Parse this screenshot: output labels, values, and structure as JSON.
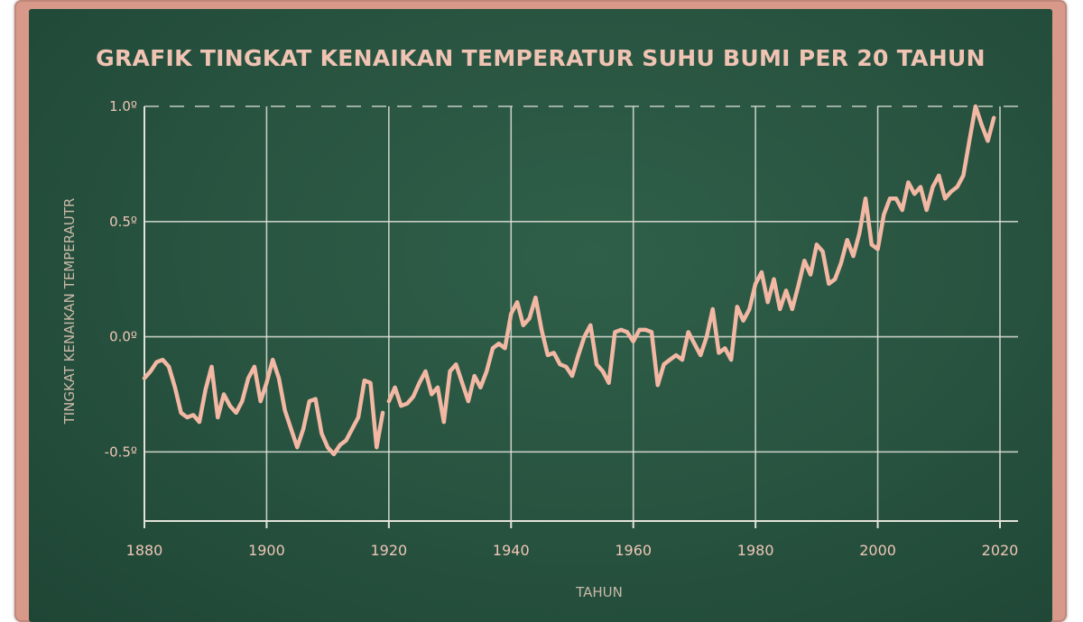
{
  "chart_data": {
    "type": "line",
    "title": "GRAFIK TINGKAT KENAIKAN TEMPERATUR SUHU BUMI PER 20 TAHUN",
    "xlabel": "TAHUN",
    "ylabel": "TINGKAT KENAIKAN TEMPERAUTR",
    "x_ticks": [
      "1880",
      "1900",
      "1920",
      "1940",
      "1960",
      "1980",
      "2000",
      "2020"
    ],
    "y_ticks": [
      {
        "value": 1.0,
        "label": "1.0º"
      },
      {
        "value": 0.5,
        "label": "0.5º"
      },
      {
        "value": 0.0,
        "label": "0.0º"
      },
      {
        "value": -0.5,
        "label": "-0.5º"
      }
    ],
    "xlim": [
      1880,
      2020
    ],
    "ylim": [
      -0.8,
      1.0
    ],
    "grid": true,
    "colors": {
      "line": "#f2b8a4",
      "grid": "#e2e2d8",
      "board": "#27523f",
      "frame": "#d8998a",
      "text": "#efc6b6"
    },
    "series": [
      {
        "segments": [
          [
            [
              1880,
              -0.18
            ],
            [
              1881,
              -0.15
            ],
            [
              1882,
              -0.11
            ],
            [
              1883,
              -0.1
            ],
            [
              1884,
              -0.13
            ],
            [
              1885,
              -0.22
            ],
            [
              1886,
              -0.33
            ],
            [
              1887,
              -0.35
            ],
            [
              1888,
              -0.34
            ],
            [
              1889,
              -0.37
            ],
            [
              1890,
              -0.23
            ],
            [
              1891,
              -0.13
            ],
            [
              1892,
              -0.35
            ],
            [
              1893,
              -0.25
            ],
            [
              1894,
              -0.3
            ],
            [
              1895,
              -0.33
            ],
            [
              1896,
              -0.28
            ],
            [
              1897,
              -0.18
            ],
            [
              1898,
              -0.13
            ],
            [
              1899,
              -0.28
            ],
            [
              1900,
              -0.2
            ],
            [
              1901,
              -0.1
            ],
            [
              1902,
              -0.18
            ],
            [
              1903,
              -0.32
            ],
            [
              1904,
              -0.4
            ],
            [
              1905,
              -0.48
            ],
            [
              1906,
              -0.4
            ],
            [
              1907,
              -0.28
            ],
            [
              1908,
              -0.27
            ],
            [
              1909,
              -0.42
            ],
            [
              1910,
              -0.48
            ],
            [
              1911,
              -0.51
            ],
            [
              1912,
              -0.47
            ],
            [
              1913,
              -0.45
            ],
            [
              1914,
              -0.4
            ],
            [
              1915,
              -0.35
            ],
            [
              1916,
              -0.19
            ],
            [
              1917,
              -0.2
            ],
            [
              1918,
              -0.48
            ],
            [
              1919,
              -0.33
            ]
          ],
          [
            [
              1920,
              -0.28
            ],
            [
              1921,
              -0.22
            ],
            [
              1922,
              -0.3
            ],
            [
              1923,
              -0.29
            ],
            [
              1924,
              -0.26
            ],
            [
              1925,
              -0.2
            ],
            [
              1926,
              -0.15
            ],
            [
              1927,
              -0.25
            ],
            [
              1928,
              -0.22
            ],
            [
              1929,
              -0.37
            ],
            [
              1930,
              -0.15
            ],
            [
              1931,
              -0.12
            ],
            [
              1932,
              -0.2
            ],
            [
              1933,
              -0.28
            ],
            [
              1934,
              -0.17
            ],
            [
              1935,
              -0.22
            ],
            [
              1936,
              -0.15
            ],
            [
              1937,
              -0.05
            ],
            [
              1938,
              -0.03
            ],
            [
              1939,
              -0.05
            ],
            [
              1940,
              0.1
            ],
            [
              1941,
              0.15
            ],
            [
              1942,
              0.05
            ],
            [
              1943,
              0.08
            ],
            [
              1944,
              0.17
            ],
            [
              1945,
              0.03
            ],
            [
              1946,
              -0.08
            ],
            [
              1947,
              -0.07
            ],
            [
              1948,
              -0.12
            ],
            [
              1949,
              -0.13
            ],
            [
              1950,
              -0.17
            ],
            [
              1951,
              -0.08
            ],
            [
              1952,
              0.0
            ],
            [
              1953,
              0.05
            ],
            [
              1954,
              -0.12
            ],
            [
              1955,
              -0.15
            ],
            [
              1956,
              -0.2
            ],
            [
              1957,
              0.02
            ],
            [
              1958,
              0.03
            ],
            [
              1959,
              0.02
            ],
            [
              1960,
              -0.02
            ],
            [
              1961,
              0.03
            ],
            [
              1962,
              0.03
            ],
            [
              1963,
              0.02
            ],
            [
              1964,
              -0.21
            ],
            [
              1965,
              -0.12
            ],
            [
              1966,
              -0.1
            ],
            [
              1967,
              -0.08
            ],
            [
              1968,
              -0.1
            ],
            [
              1969,
              0.02
            ],
            [
              1970,
              -0.03
            ],
            [
              1971,
              -0.08
            ],
            [
              1972,
              0.0
            ],
            [
              1973,
              0.12
            ],
            [
              1974,
              -0.07
            ],
            [
              1975,
              -0.05
            ],
            [
              1976,
              -0.1
            ],
            [
              1977,
              0.13
            ],
            [
              1978,
              0.07
            ],
            [
              1979,
              0.12
            ],
            [
              1980,
              0.23
            ],
            [
              1981,
              0.28
            ],
            [
              1982,
              0.15
            ],
            [
              1983,
              0.25
            ],
            [
              1984,
              0.12
            ],
            [
              1985,
              0.2
            ],
            [
              1986,
              0.12
            ],
            [
              1987,
              0.22
            ],
            [
              1988,
              0.33
            ],
            [
              1989,
              0.27
            ],
            [
              1990,
              0.4
            ],
            [
              1991,
              0.37
            ],
            [
              1992,
              0.23
            ],
            [
              1993,
              0.25
            ],
            [
              1994,
              0.32
            ],
            [
              1995,
              0.42
            ],
            [
              1996,
              0.35
            ],
            [
              1997,
              0.45
            ],
            [
              1998,
              0.6
            ],
            [
              1999,
              0.4
            ],
            [
              2000,
              0.38
            ],
            [
              2001,
              0.53
            ],
            [
              2002,
              0.6
            ],
            [
              2003,
              0.6
            ],
            [
              2004,
              0.55
            ],
            [
              2005,
              0.67
            ],
            [
              2006,
              0.62
            ],
            [
              2007,
              0.65
            ],
            [
              2008,
              0.55
            ],
            [
              2009,
              0.65
            ],
            [
              2010,
              0.7
            ],
            [
              2011,
              0.6
            ],
            [
              2012,
              0.63
            ],
            [
              2013,
              0.65
            ],
            [
              2014,
              0.7
            ],
            [
              2015,
              0.85
            ],
            [
              2016,
              1.0
            ],
            [
              2017,
              0.92
            ],
            [
              2018,
              0.85
            ],
            [
              2019,
              0.95
            ]
          ]
        ]
      }
    ]
  }
}
